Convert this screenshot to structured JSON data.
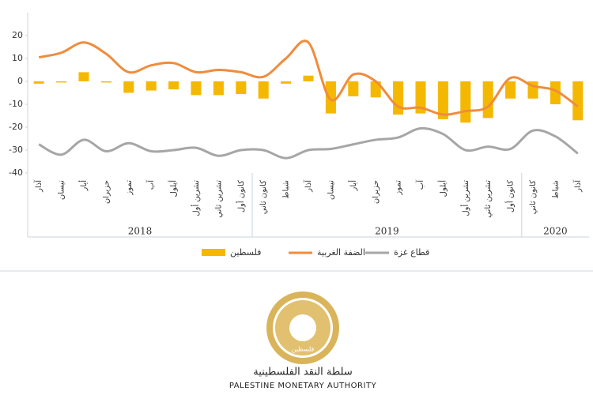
{
  "chart_data": {
    "type": "combo",
    "categories": [
      "آذار",
      "نيسان",
      "أيار",
      "حزيران",
      "تموز",
      "آب",
      "أيلول",
      "تشرين أول",
      "تشرين ثاني",
      "كانون أول",
      "كانون ثاني",
      "شباط",
      "آذار",
      "نيسان",
      "أيار",
      "حزيران",
      "تموز",
      "آب",
      "أيلول",
      "تشرين أول",
      "تشرين ثاني",
      "كانون أول",
      "كانون ثاني",
      "شباط",
      "آذار"
    ],
    "years": [
      {
        "label": "2018",
        "count": 10
      },
      {
        "label": "2019",
        "count": 12
      },
      {
        "label": "2020",
        "count": 3
      }
    ],
    "series": [
      {
        "name": "فلسطين",
        "type": "bar",
        "color": "#f5b800",
        "values": [
          -1,
          -0.5,
          4,
          -0.5,
          -5,
          -4,
          -3.5,
          -6,
          -6,
          -5.5,
          -7.5,
          -1,
          2.5,
          -14,
          -6.5,
          -7,
          -14.5,
          -14,
          -16.5,
          -18,
          -16,
          -7.5,
          -7.5,
          -10,
          -17
        ]
      },
      {
        "name": "الضفة الغربية",
        "type": "line",
        "color": "#f08c3c",
        "values": [
          10.5,
          12.5,
          17,
          12,
          4,
          7,
          8,
          4,
          5,
          4,
          2,
          10,
          17,
          -8,
          3,
          0,
          -11,
          -11.5,
          -14.5,
          -13,
          -11,
          1.5,
          -2,
          -4,
          -11
        ]
      },
      {
        "name": "قطاع غزة",
        "type": "line",
        "color": "#a6a6a6",
        "values": [
          -27.5,
          -32,
          -25.5,
          -30.5,
          -27,
          -30.5,
          -30,
          -29,
          -32.5,
          -30,
          -30,
          -33.5,
          -30,
          -29.5,
          -27.5,
          -25.5,
          -24.5,
          -20.5,
          -23,
          -30,
          -28.5,
          -29.5,
          -21.5,
          -24,
          -31.5
        ]
      }
    ],
    "ylim": [
      -40,
      30
    ],
    "yticks": [
      -40,
      -30,
      -20,
      -10,
      0,
      10,
      20
    ],
    "grid": false
  },
  "logo": {
    "arabic": "سلطة النقد الفلسطينية",
    "english": "PALESTINE MONETARY AUTHORITY",
    "emblem": "فلسطين"
  }
}
